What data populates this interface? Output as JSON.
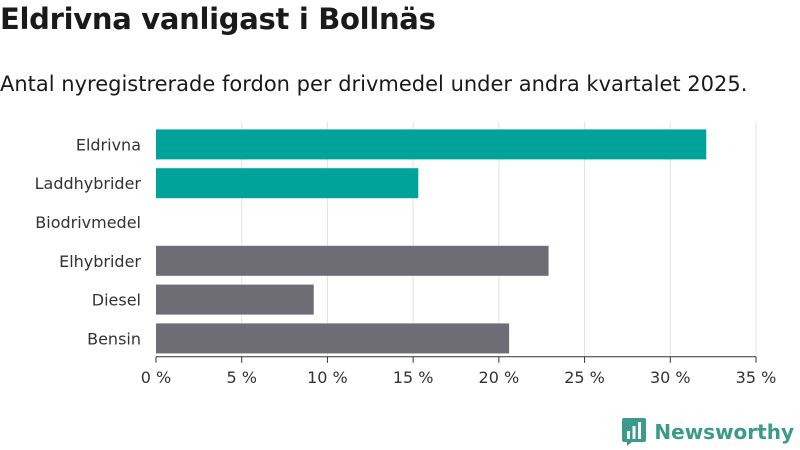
{
  "header": {
    "title": "Eldrivna vanligast i Bollnäs",
    "subtitle": "Antal nyregistrerade fordon per drivmedel under andra kvartalet 2025."
  },
  "brand": {
    "name": "Newsworthy",
    "icon": "bar-chart-badge-icon"
  },
  "chart_data": {
    "type": "bar",
    "orientation": "horizontal",
    "categories": [
      "Eldrivna",
      "Laddhybrider",
      "Biodrivmedel",
      "Elhybrider",
      "Diesel",
      "Bensin"
    ],
    "values": [
      32.1,
      15.3,
      0,
      22.9,
      9.2,
      20.6
    ],
    "bar_colors": [
      "#00a39a",
      "#00a39a",
      "#00a39a",
      "#6e6d75",
      "#6e6d75",
      "#6e6d75"
    ],
    "xlim": [
      0,
      35
    ],
    "xticks": [
      0,
      5,
      10,
      15,
      20,
      25,
      30,
      35
    ],
    "xtick_labels": [
      "0 %",
      "5 %",
      "10 %",
      "15 %",
      "20 %",
      "25 %",
      "30 %",
      "35 %"
    ],
    "grid": true
  }
}
